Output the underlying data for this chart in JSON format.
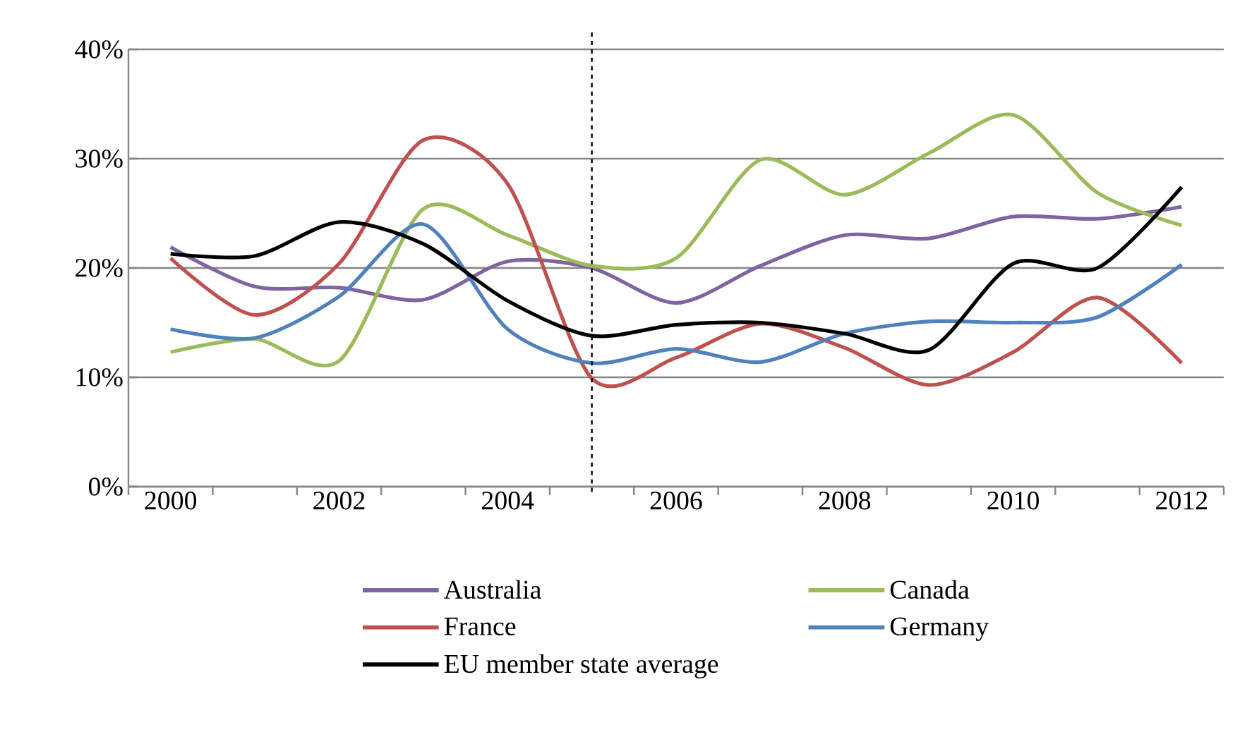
{
  "chart_data": {
    "type": "line",
    "x": [
      2000,
      2001,
      2002,
      2003,
      2004,
      2005,
      2006,
      2007,
      2008,
      2009,
      2010,
      2011,
      2012
    ],
    "series": [
      {
        "name": "Australia",
        "color": "#8064a2",
        "values": [
          21.9,
          18.3,
          18.2,
          17.1,
          20.6,
          20.0,
          16.8,
          20.2,
          23.0,
          22.7,
          24.7,
          24.5,
          25.6
        ]
      },
      {
        "name": "Canada",
        "color": "#9bbb59",
        "values": [
          12.3,
          13.5,
          11.5,
          25.4,
          23.0,
          20.2,
          20.9,
          29.9,
          26.7,
          30.5,
          34.0,
          26.9,
          23.9
        ]
      },
      {
        "name": "France",
        "color": "#c0504d",
        "values": [
          20.9,
          15.7,
          20.4,
          31.7,
          27.7,
          9.9,
          11.8,
          14.9,
          12.7,
          9.3,
          12.3,
          17.3,
          11.3
        ]
      },
      {
        "name": "Germany",
        "color": "#4f81bd",
        "values": [
          14.4,
          13.6,
          17.4,
          24.0,
          14.4,
          11.3,
          12.6,
          11.4,
          14.0,
          15.1,
          15.0,
          15.5,
          20.3
        ]
      },
      {
        "name": "EU member state average",
        "color": "#000000",
        "values": [
          21.3,
          21.1,
          24.2,
          22.2,
          17.0,
          13.8,
          14.8,
          15.0,
          14.0,
          12.5,
          20.4,
          20.0,
          27.4
        ]
      }
    ],
    "xlim": [
      1999.5,
      2012.5
    ],
    "xticks": [
      2000,
      2002,
      2004,
      2006,
      2008,
      2010,
      2012
    ],
    "ylim": [
      0,
      40
    ],
    "yticks": [
      {
        "value": 0,
        "label": "0%"
      },
      {
        "value": 10,
        "label": "10%"
      },
      {
        "value": 20,
        "label": "20%"
      },
      {
        "value": 30,
        "label": "30%"
      },
      {
        "value": 40,
        "label": "40%"
      }
    ],
    "ref_lines": [
      {
        "axis": "x",
        "value": 2005,
        "color": "#000000",
        "line_style": "dashed"
      }
    ],
    "grid": "y",
    "legend": "bottom",
    "marker": "none",
    "line_style": "solid"
  }
}
